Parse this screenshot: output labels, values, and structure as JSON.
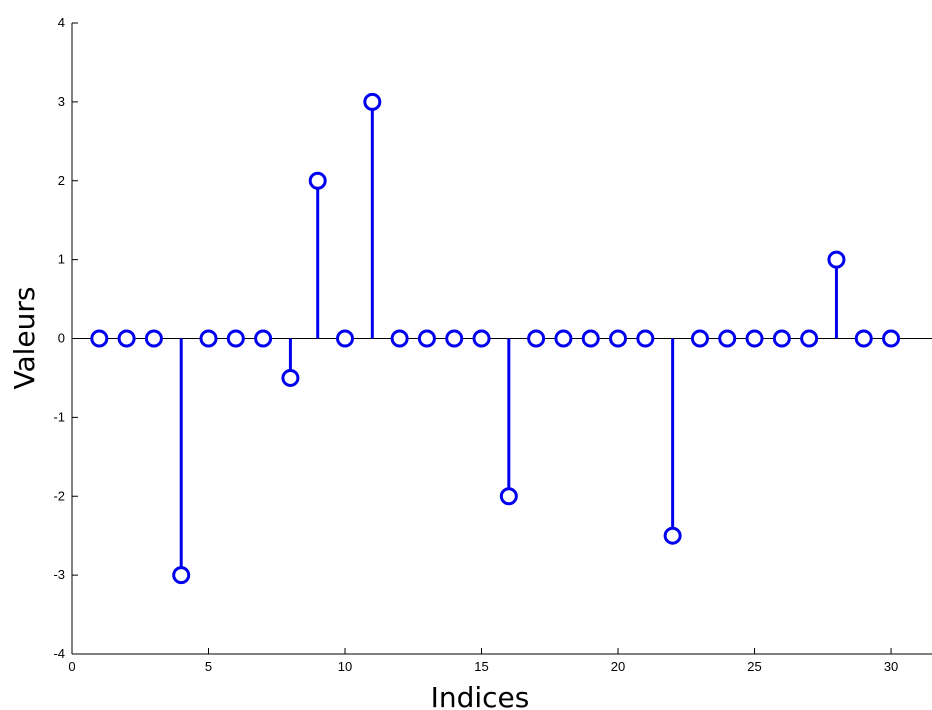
{
  "chart_data": {
    "type": "stem",
    "title": "",
    "xlabel": "Indices",
    "ylabel": "Valeurs",
    "xlim": [
      0,
      31.5
    ],
    "ylim": [
      -4,
      4
    ],
    "xticks": [
      0,
      5,
      10,
      15,
      20,
      25,
      30
    ],
    "yticks": [
      -4,
      -3,
      -2,
      -1,
      0,
      1,
      2,
      3,
      4
    ],
    "grid": false,
    "legend": "none",
    "marker": "o",
    "baseline": 0,
    "x": [
      1,
      2,
      3,
      4,
      5,
      6,
      7,
      8,
      9,
      10,
      11,
      12,
      13,
      14,
      15,
      16,
      17,
      18,
      19,
      20,
      21,
      22,
      23,
      24,
      25,
      26,
      27,
      28,
      29,
      30
    ],
    "y": [
      0,
      0,
      0,
      -3,
      0,
      0,
      0,
      -0.5,
      2,
      0,
      3,
      0,
      0,
      0,
      0,
      -2,
      0,
      0,
      0,
      0,
      0,
      -2.5,
      0,
      0,
      0,
      0,
      0,
      1,
      0,
      0
    ],
    "colors": {
      "stem": "#0000ee",
      "axis": "#000000",
      "baseline": "#000000"
    }
  }
}
